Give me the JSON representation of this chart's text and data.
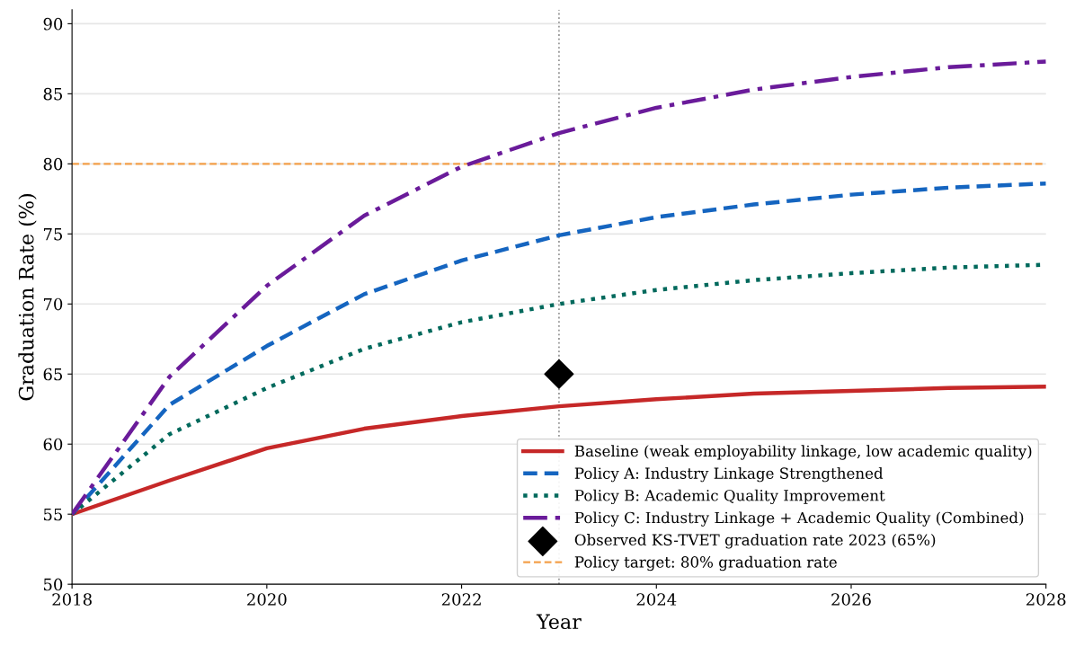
{
  "chart_data": {
    "type": "line",
    "xlabel": "Year",
    "ylabel": "Graduation Rate (%)",
    "x": [
      2018,
      2019,
      2020,
      2021,
      2022,
      2023,
      2024,
      2025,
      2026,
      2027,
      2028
    ],
    "series": [
      {
        "name": "Baseline (weak employability linkage, low academic quality)",
        "color": "#c62828",
        "line_style": "solid",
        "values": [
          55,
          57.4,
          59.7,
          61.1,
          62.0,
          62.7,
          63.2,
          63.6,
          63.8,
          64.0,
          64.1
        ]
      },
      {
        "name": "Policy A: Industry Linkage Strengthened",
        "color": "#1565c0",
        "line_style": "dashed",
        "values": [
          55,
          62.8,
          67.0,
          70.7,
          73.1,
          74.9,
          76.2,
          77.1,
          77.8,
          78.3,
          78.6
        ]
      },
      {
        "name": "Policy B: Academic Quality Improvement",
        "color": "#00695c",
        "line_style": "dotted",
        "values": [
          55,
          60.7,
          64.0,
          66.8,
          68.7,
          70.0,
          71.0,
          71.7,
          72.2,
          72.6,
          72.8
        ]
      },
      {
        "name": "Policy C: Industry Linkage + Academic Quality (Combined)",
        "color": "#6a1b9a",
        "line_style": "dashdot",
        "values": [
          55,
          64.8,
          71.3,
          76.3,
          79.8,
          82.2,
          84.0,
          85.3,
          86.2,
          86.9,
          87.3
        ]
      },
      {
        "name": "Observed KS-TVET graduation rate 2023 (65%)",
        "type": "scatter",
        "marker": "diamond",
        "color": "#000000",
        "x": [
          2023
        ],
        "values": [
          65
        ]
      }
    ],
    "ref_lines": [
      {
        "axis": "y",
        "value": 80,
        "label": "Policy target: 80% graduation rate",
        "color": "#f4a04a",
        "line_style": "dashed"
      },
      {
        "axis": "x",
        "value": 2023,
        "color": "#999999",
        "line_style": "dotted"
      }
    ],
    "xlim": [
      2018,
      2028
    ],
    "xticks": [
      2018,
      2020,
      2022,
      2024,
      2026,
      2028
    ],
    "ylim": [
      50,
      91
    ],
    "yticks": [
      50,
      55,
      60,
      65,
      70,
      75,
      80,
      85,
      90
    ],
    "grid": "y",
    "legend": "bottom right"
  }
}
